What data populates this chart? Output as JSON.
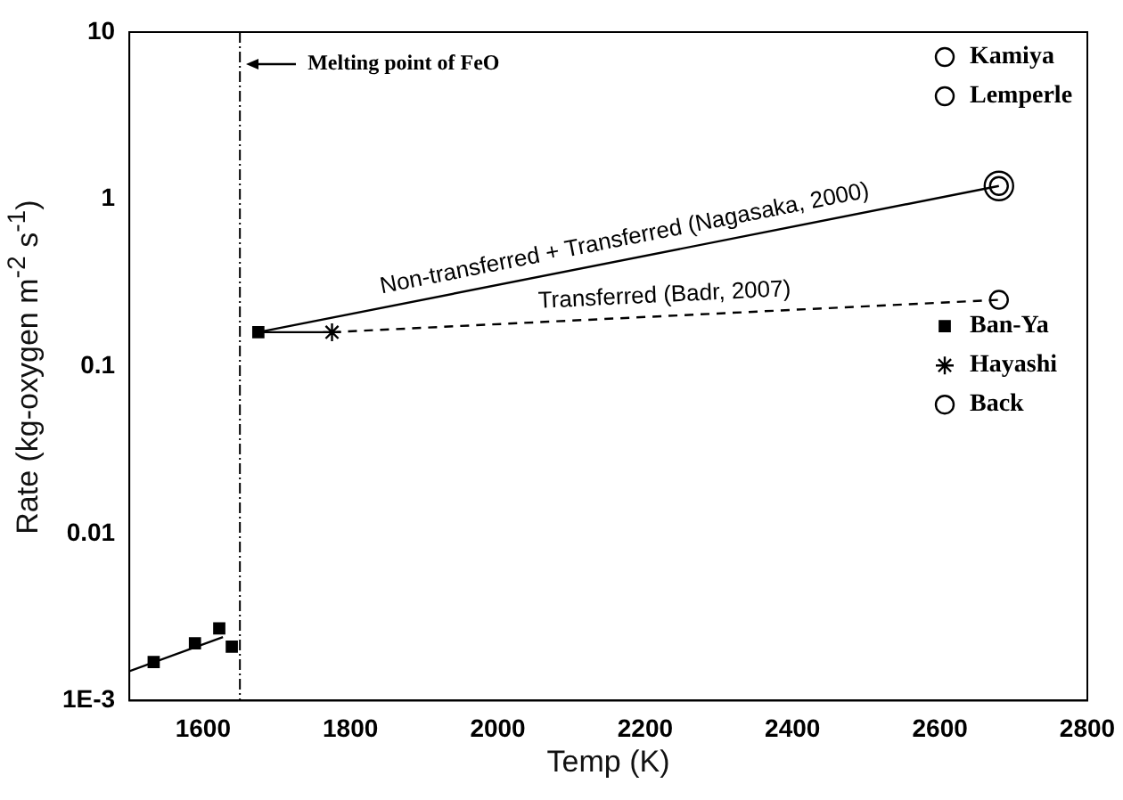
{
  "chart_data": {
    "type": "scatter",
    "xlabel": "Temp (K)",
    "ylabel": "Rate (kg-oxygen m$^{-2}$ s$^{-1}$)",
    "xlim": [
      1500,
      2800
    ],
    "xticks": [
      1600,
      1800,
      2000,
      2200,
      2400,
      2600,
      2800
    ],
    "ylim": [
      0.001,
      10
    ],
    "yticks": [
      {
        "value": 0.001,
        "label": "1E-3"
      },
      0.01,
      0.1,
      1,
      10
    ],
    "log": "y",
    "grid": false,
    "legend": "right",
    "series": [
      {
        "name": "Kamiya",
        "marker": "circle",
        "color": "#000000",
        "x": [
          2680
        ],
        "values": [
          1.2
        ]
      },
      {
        "name": "Lemperle",
        "marker": "circle",
        "color": "#000000",
        "x": [
          2680
        ],
        "values": [
          1.2
        ]
      },
      {
        "name": "Ban-Ya",
        "marker": "square",
        "color": "#000000",
        "x": [
          1533,
          1589,
          1622,
          1639,
          1675
        ],
        "values": [
          0.0017,
          0.0022,
          0.0027,
          0.0021,
          0.16
        ]
      },
      {
        "name": "Hayashi",
        "marker": "cross",
        "color": "#000000",
        "x": [
          1775
        ],
        "values": [
          0.16
        ]
      },
      {
        "name": "Back",
        "marker": "circle",
        "color": "#000000",
        "x": [
          2680
        ],
        "values": [
          0.25
        ]
      },
      {
        "name": "Non-transferred + Transferred (Nagasaka, 2000)",
        "type": "line",
        "marker": "none",
        "line_style": "solid",
        "color": "#000000",
        "x": [
          1675,
          2680
        ],
        "values": [
          0.16,
          1.2
        ]
      },
      {
        "name": "Transferred (Badr, 2007)",
        "type": "line",
        "marker": "none",
        "line_style": "dashed",
        "color": "#000000",
        "x": [
          1775,
          2680
        ],
        "values": [
          0.16,
          0.25
        ]
      },
      {
        "type": "line",
        "marker": "none",
        "line_style": "solid",
        "color": "#000000",
        "x": [
          1675,
          1775
        ],
        "values": [
          0.16,
          0.16
        ]
      },
      {
        "type": "line",
        "marker": "none",
        "line_style": "solid",
        "color": "#000000",
        "x": [
          1500,
          1627
        ],
        "values": [
          0.0015,
          0.0024
        ]
      }
    ],
    "ref_lines": [
      {
        "axis": "x",
        "value": 1650,
        "label": "Melting point of FeO",
        "line_style": "dashed",
        "color": "#000000"
      }
    ]
  }
}
